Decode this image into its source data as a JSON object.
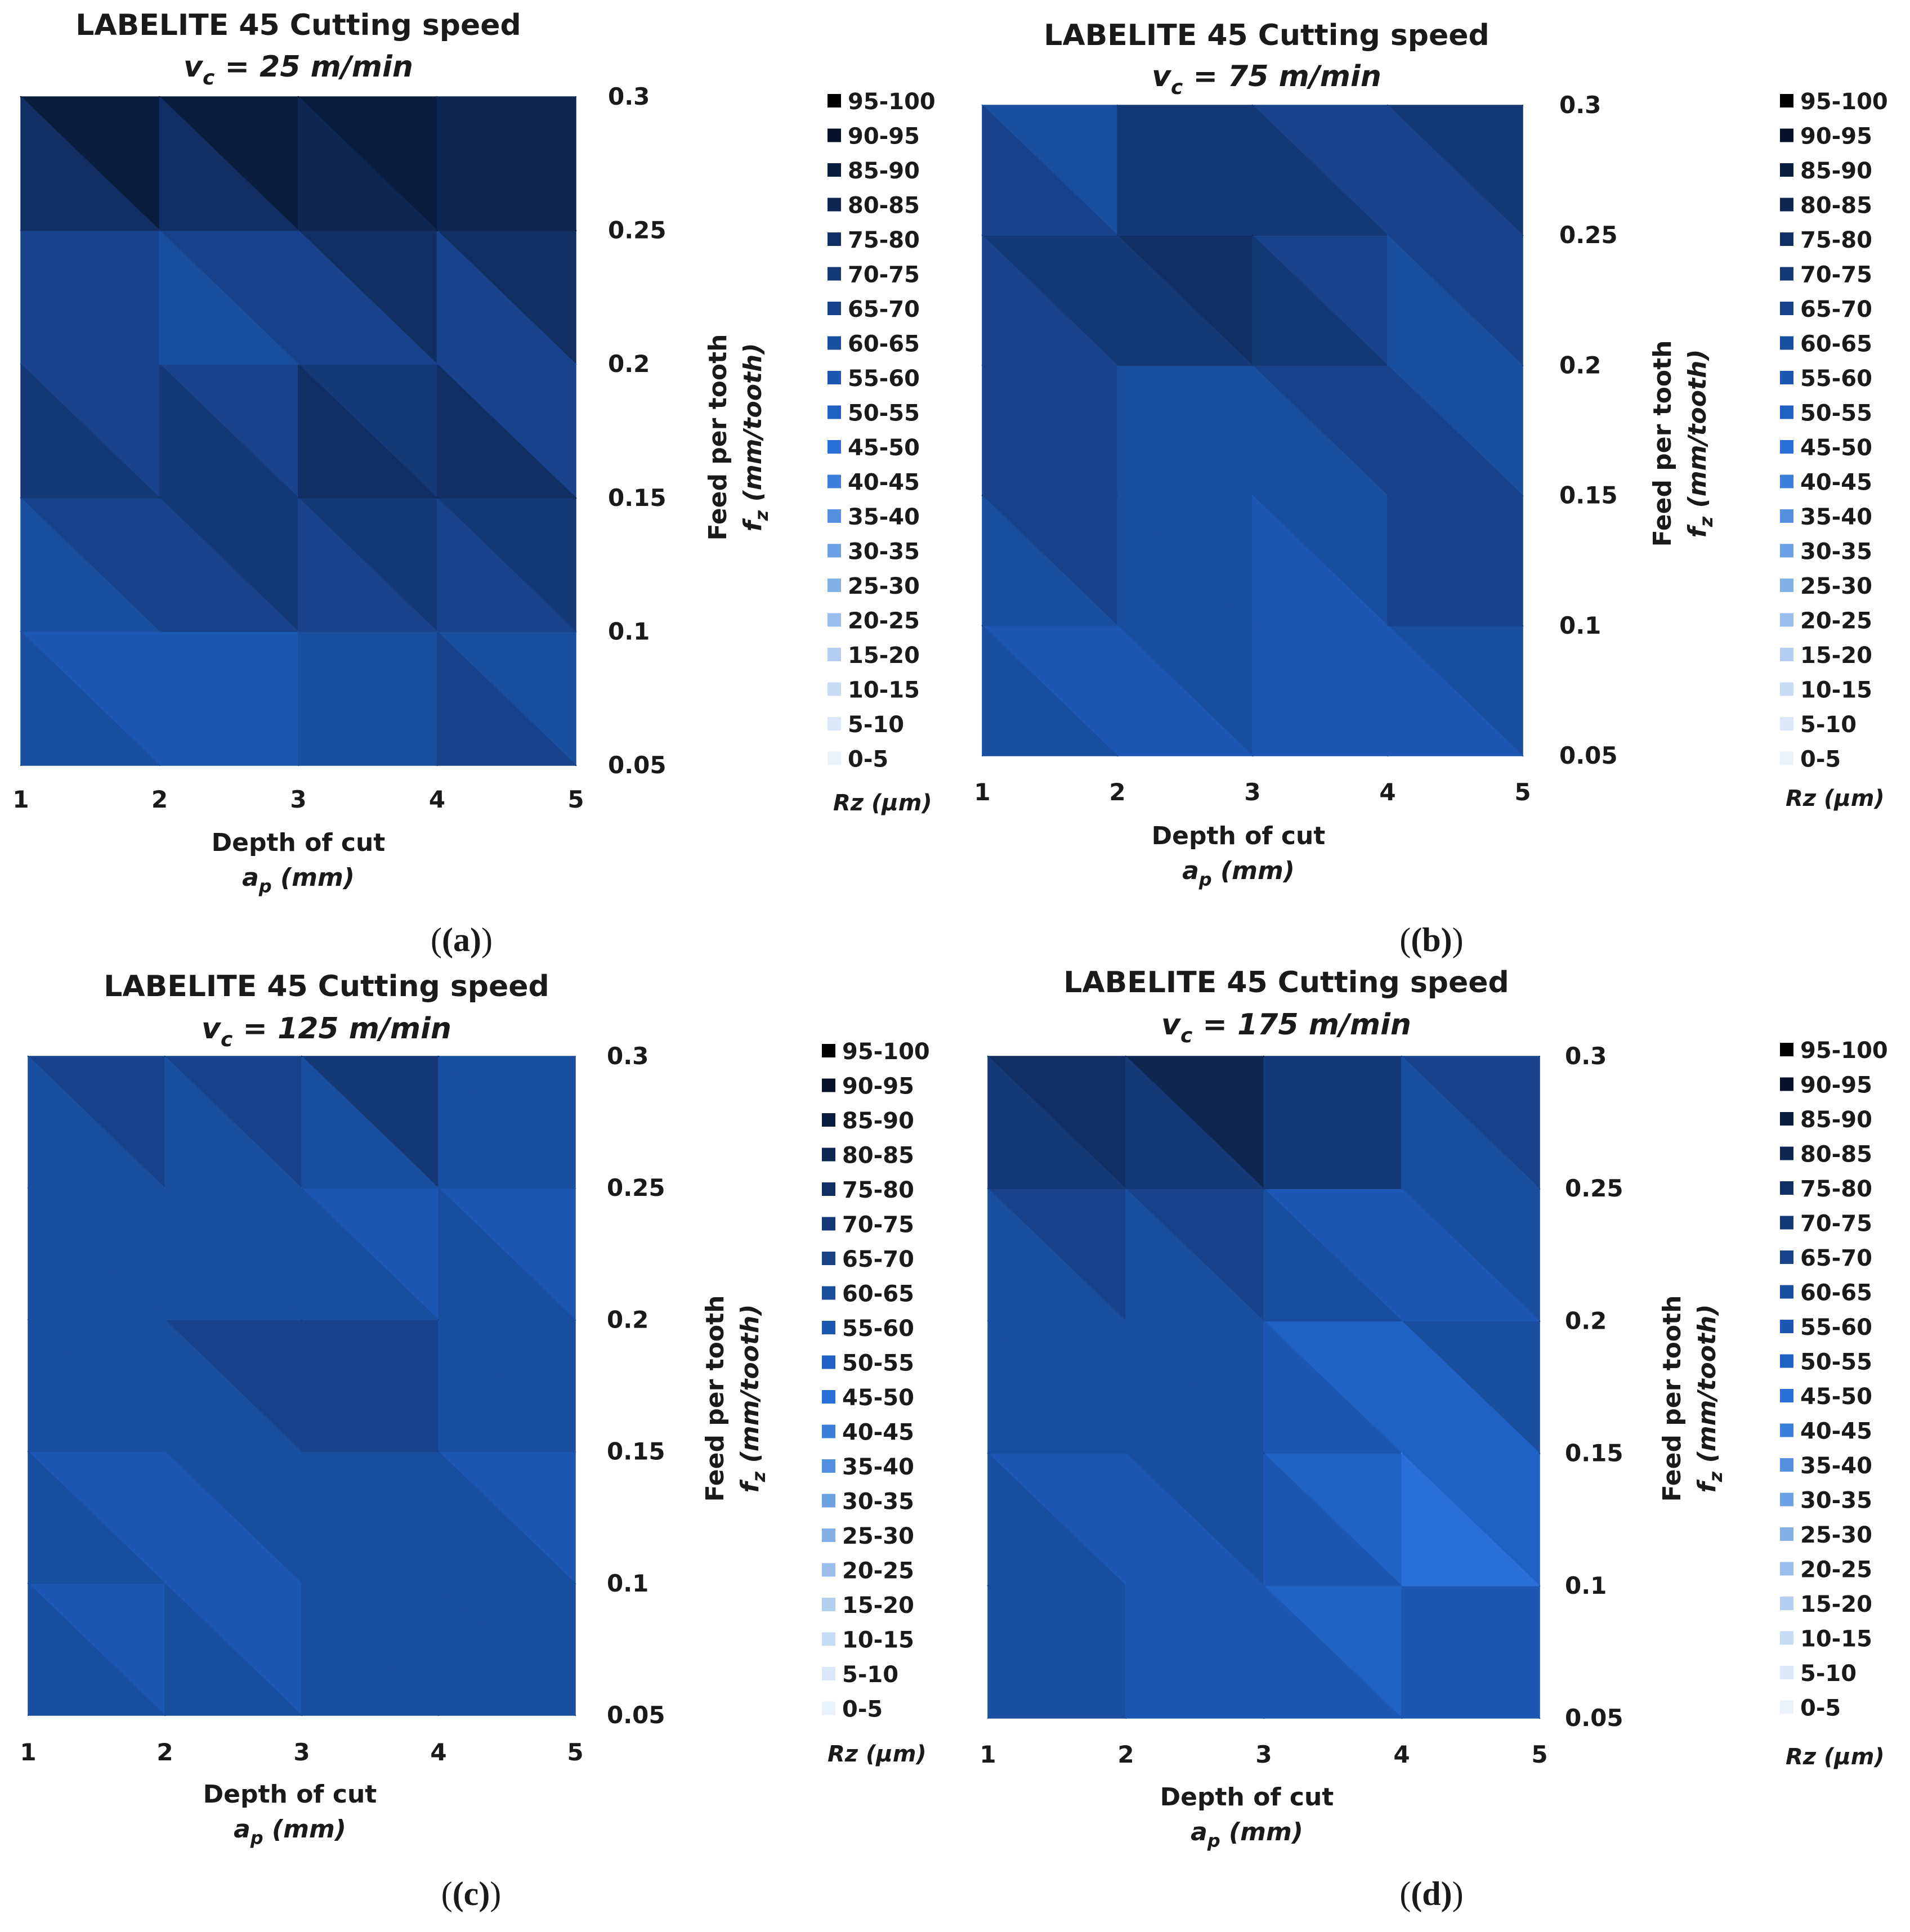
{
  "chart_data": [
    {
      "type": "heatmap",
      "panel": "a",
      "title": "LABELITE 45 Cutting speed",
      "subtitle": {
        "var": "v",
        "sub": "c",
        "rest": " = 25 m/min"
      },
      "xlabel": "Depth of cut",
      "xunit": {
        "var": "a",
        "sub": "p",
        "rest": " (mm)"
      },
      "ylabel": "Feed per tooth",
      "yunit": {
        "var": "f",
        "sub": "z",
        "rest": " (mm/tooth)"
      },
      "x": [
        1,
        2,
        3,
        4,
        5
      ],
      "y": [
        0.05,
        0.1,
        0.15,
        0.2,
        0.25,
        0.3
      ],
      "x_ticks": [
        "1",
        "2",
        "3",
        "4",
        "5"
      ],
      "y_ticks": [
        "0.05",
        "0.1",
        "0.15",
        "0.2",
        "0.25",
        "0.3"
      ],
      "z_unit": "Rz (μm)",
      "z": [
        [
          66,
          58,
          55,
          70,
          75
        ],
        [
          64,
          57,
          62,
          62,
          55
        ],
        [
          72,
          76,
          78,
          84,
          84
        ],
        [
          64,
          64,
          63,
          68,
          45
        ],
        [
          68,
          66,
          66,
          92,
          90
        ],
        [
          96,
          96,
          96,
          72,
          80
        ]
      ]
    },
    {
      "type": "heatmap",
      "panel": "b",
      "title": "LABELITE 45 Cutting speed",
      "subtitle": {
        "var": "v",
        "sub": "c",
        "rest": " = 75 m/min"
      },
      "xlabel": "Depth of cut",
      "xunit": {
        "var": "a",
        "sub": "p",
        "rest": " (mm)"
      },
      "ylabel": "Feed per tooth",
      "yunit": {
        "var": "f",
        "sub": "z",
        "rest": " (mm/tooth)"
      },
      "x": [
        1,
        2,
        3,
        4,
        5
      ],
      "y": [
        0.05,
        0.1,
        0.15,
        0.2,
        0.25,
        0.3
      ],
      "x_ticks": [
        "1",
        "2",
        "3",
        "4",
        "5"
      ],
      "y_ticks": [
        "0.05",
        "0.1",
        "0.15",
        "0.2",
        "0.25",
        "0.3"
      ],
      "z_unit": "Rz (μm)",
      "z": [
        [
          62,
          55,
          62,
          52,
          60
        ],
        [
          66,
          58,
          62,
          64,
          66
        ],
        [
          70,
          68,
          52,
          70,
          68
        ],
        [
          62,
          66,
          72,
          58,
          68
        ],
        [
          74,
          76,
          80,
          62,
          72
        ],
        [
          50,
          66,
          70,
          72,
          76
        ]
      ]
    },
    {
      "type": "heatmap",
      "panel": "c",
      "title": "LABELITE 45 Cutting speed",
      "subtitle": {
        "var": "v",
        "sub": "c",
        "rest": " = 125 m/min"
      },
      "xlabel": "Depth of cut",
      "xunit": {
        "var": "a",
        "sub": "p",
        "rest": " (mm)"
      },
      "ylabel": "Feed per tooth",
      "yunit": {
        "var": "f",
        "sub": "z",
        "rest": " (mm/tooth)"
      },
      "x": [
        1,
        2,
        3,
        4,
        5
      ],
      "y": [
        0.05,
        0.1,
        0.15,
        0.2,
        0.25,
        0.3
      ],
      "x_ticks": [
        "1",
        "2",
        "3",
        "4",
        "5"
      ],
      "y_ticks": [
        "0.05",
        "0.1",
        "0.15",
        "0.2",
        "0.25",
        "0.3"
      ],
      "z_unit": "Rz (μm)",
      "z": [
        [
          64,
          62,
          62,
          60,
          62
        ],
        [
          60,
          56,
          60,
          64,
          56
        ],
        [
          64,
          58,
          64,
          66,
          54
        ],
        [
          60,
          64,
          72,
          70,
          58
        ],
        [
          64,
          58,
          50,
          58,
          52
        ],
        [
          70,
          76,
          80,
          82,
          58
        ]
      ]
    },
    {
      "type": "heatmap",
      "panel": "d",
      "title": "LABELITE 45 Cutting speed",
      "subtitle": {
        "var": "v",
        "sub": "c",
        "rest": " = 175 m/min"
      },
      "xlabel": "Depth of cut",
      "xunit": {
        "var": "a",
        "sub": "p",
        "rest": " (mm)"
      },
      "ylabel": "Feed per tooth",
      "yunit": {
        "var": "f",
        "sub": "z",
        "rest": " (mm/tooth)"
      },
      "x": [
        1,
        2,
        3,
        4,
        5
      ],
      "y": [
        0.05,
        0.1,
        0.15,
        0.2,
        0.25,
        0.3
      ],
      "x_ticks": [
        "1",
        "2",
        "3",
        "4",
        "5"
      ],
      "y_ticks": [
        "0.05",
        "0.1",
        "0.15",
        "0.2",
        "0.25",
        "0.3"
      ],
      "z_unit": "Rz (μm)",
      "z": [
        [
          58,
          56,
          56,
          56,
          62
        ],
        [
          74,
          56,
          58,
          50,
          58
        ],
        [
          62,
          58,
          70,
          36,
          66
        ],
        [
          62,
          62,
          62,
          52,
          66
        ],
        [
          66,
          68,
          70,
          56,
          64
        ],
        [
          76,
          84,
          92,
          66,
          70
        ]
      ]
    }
  ],
  "legend": {
    "title": "Rz (μm)",
    "bins": [
      "95-100",
      "90-95",
      "85-90",
      "80-85",
      "75-80",
      "70-75",
      "65-70",
      "60-65",
      "55-60",
      "50-55",
      "45-50",
      "40-45",
      "35-40",
      "30-35",
      "25-30",
      "20-25",
      "15-20",
      "10-15",
      "5-10",
      "0-5"
    ],
    "colors": [
      "#000000",
      "#07122a",
      "#0b1d3e",
      "#0e2752",
      "#112f63",
      "#153977",
      "#18438b",
      "#1a4e9f",
      "#1c58b3",
      "#1f62c4",
      "#2a6fd6",
      "#3c7fdb",
      "#5590e0",
      "#6c9fe3",
      "#84b0e8",
      "#9bbfec",
      "#b2cef0",
      "#c7dcf4",
      "#dbe8f8",
      "#ecf2fb"
    ]
  },
  "captions": [
    "(a)",
    "(b)",
    "(c)",
    "(d)"
  ]
}
